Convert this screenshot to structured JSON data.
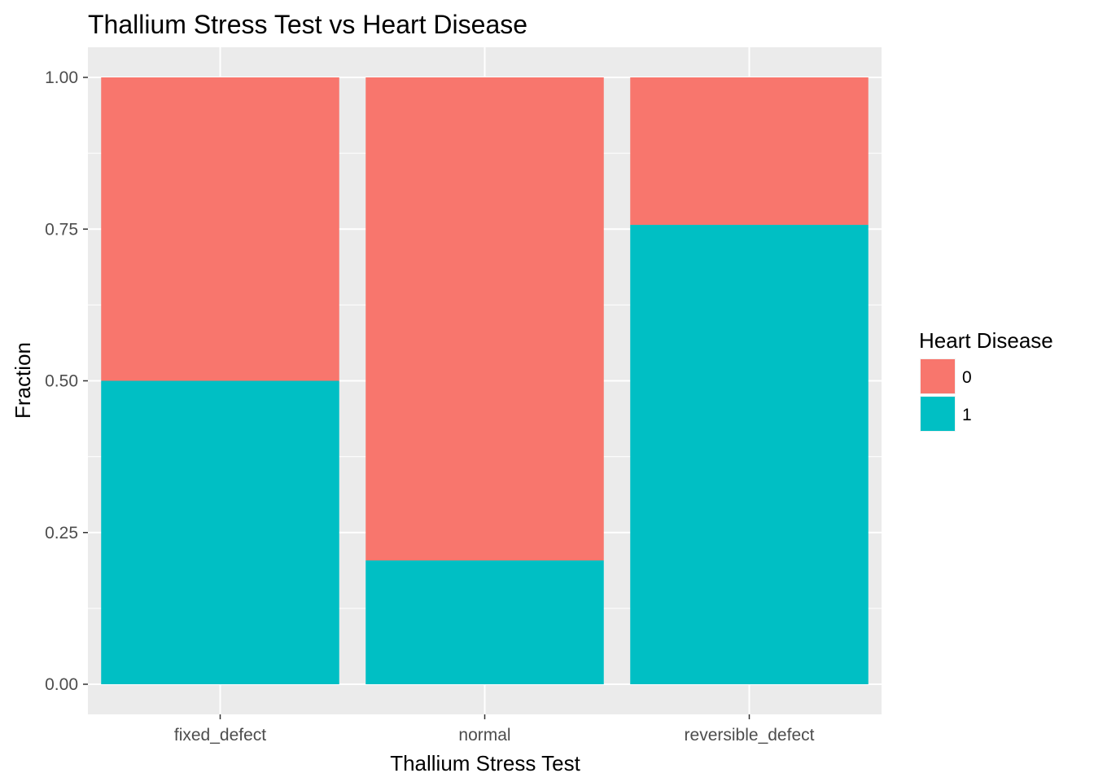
{
  "chart_data": {
    "type": "bar",
    "stacked": true,
    "title": "Thallium Stress Test vs Heart Disease",
    "xlabel": "Thallium Stress Test",
    "ylabel": "Fraction",
    "ylim": [
      0,
      1
    ],
    "yticks": [
      "0.00",
      "0.25",
      "0.50",
      "0.75",
      "1.00"
    ],
    "ytick_values": [
      0,
      0.25,
      0.5,
      0.75,
      1.0
    ],
    "categories": [
      "fixed_defect",
      "normal",
      "reversible_defect"
    ],
    "series": [
      {
        "name": "0",
        "values": [
          0.5,
          0.796,
          0.243
        ],
        "color": "#F8766D"
      },
      {
        "name": "1",
        "values": [
          0.5,
          0.204,
          0.757
        ],
        "color": "#00BFC4"
      }
    ],
    "legend": {
      "title": "Heart Disease",
      "position": "right"
    },
    "panel_background": "#EBEBEB",
    "grid": true
  }
}
